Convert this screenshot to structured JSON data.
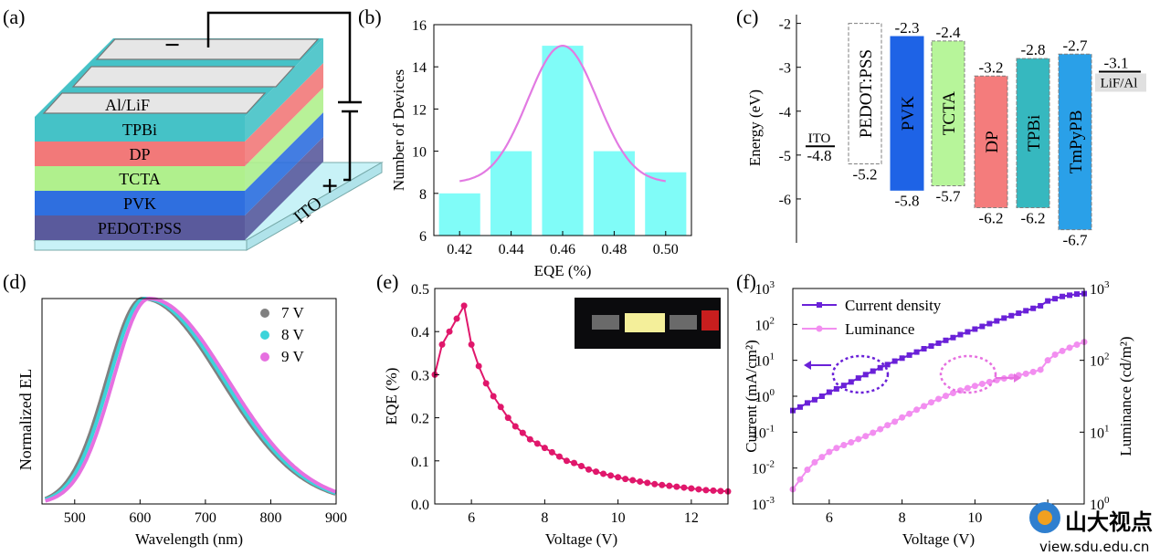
{
  "panels": {
    "a": {
      "label": "(a)",
      "layers": [
        "PEDOT:PSS",
        "PVK",
        "TCTA",
        "DP",
        "TPBi",
        "Al/LiF"
      ],
      "layer_colors": [
        "#5a5a9c",
        "#2f6fdf",
        "#b0f08d",
        "#f27979",
        "#45c2c7",
        "#dcdcdc"
      ],
      "substrate": "ITO",
      "minus": "−",
      "plus": "+"
    },
    "b": {
      "label": "(b)"
    },
    "c": {
      "label": "(c)"
    },
    "d": {
      "label": "(d)"
    },
    "e": {
      "label": "(e)"
    },
    "f": {
      "label": "(f)"
    }
  },
  "chart_data": [
    {
      "id": "b",
      "type": "bar",
      "x": [
        0.42,
        0.44,
        0.46,
        0.48,
        0.5
      ],
      "values": [
        8,
        10,
        15,
        10,
        9
      ],
      "fit_curve": "gaussian",
      "fit": {
        "amplitude": 6.5,
        "center": 0.46,
        "sigma": 0.0135,
        "baseline": 8.5
      },
      "xlabel": "EQE (%)",
      "ylabel": "Number of Devices",
      "xlim": [
        0.41,
        0.51
      ],
      "ylim": [
        6,
        16
      ],
      "xticks": [
        "0.42",
        "0.44",
        "0.46",
        "0.48",
        "0.50"
      ],
      "yticks": [
        "6",
        "8",
        "10",
        "12",
        "14",
        "16"
      ],
      "colors": {
        "bar": "#80fcf8",
        "fit": "#e27ae2"
      }
    },
    {
      "id": "c",
      "type": "bar",
      "ylabel": "Energy (eV)",
      "ylim": [
        -7,
        -1.8
      ],
      "yticks": [
        "-2",
        "-3",
        "-4",
        "-5",
        "-6"
      ],
      "materials": [
        {
          "name": "ITO",
          "level": -4.8,
          "kind": "line",
          "label": "ITO",
          "value_label": "-4.8"
        },
        {
          "name": "PEDOT:PSS",
          "lumo": -2.0,
          "homo": -5.2,
          "color": "#ffffff",
          "border": "#7f7f7f",
          "top_label": "",
          "bottom_label": "-5.2"
        },
        {
          "name": "PVK",
          "lumo": -2.3,
          "homo": -5.8,
          "color": "#1e63e6",
          "border": "#1e63e6",
          "top_label": "-2.3",
          "bottom_label": "-5.8"
        },
        {
          "name": "TCTA",
          "lumo": -2.4,
          "homo": -5.7,
          "color": "#b7f59a",
          "border": "#7f7f7f",
          "top_label": "-2.4",
          "bottom_label": "-5.7"
        },
        {
          "name": "DP",
          "lumo": -3.2,
          "homo": -6.2,
          "color": "#f47c7c",
          "border": "#7f7f7f",
          "top_label": "-3.2",
          "bottom_label": "-6.2"
        },
        {
          "name": "TPBi",
          "lumo": -2.8,
          "homo": -6.2,
          "color": "#36b8bf",
          "border": "#7f7f7f",
          "top_label": "-2.8",
          "bottom_label": "-6.2"
        },
        {
          "name": "TmPyPB",
          "lumo": -2.7,
          "homo": -6.7,
          "color": "#2aa0e8",
          "border": "#7f7f7f",
          "top_label": "-2.7",
          "bottom_label": "-6.7"
        },
        {
          "name": "LiF/Al",
          "level": -3.1,
          "kind": "line",
          "label": "LiF/Al",
          "value_label": "-3.1"
        }
      ]
    },
    {
      "id": "d",
      "type": "line",
      "xlabel": "Wavelength (nm)",
      "ylabel": "Normalized EL",
      "xlim": [
        450,
        900
      ],
      "xticks": [
        "500",
        "600",
        "700",
        "800",
        "900"
      ],
      "series": [
        {
          "name": "7 V",
          "peak": 604,
          "color": "#808080"
        },
        {
          "name": "8 V",
          "peak": 608,
          "color": "#3cd4da"
        },
        {
          "name": "9 V",
          "peak": 614,
          "color": "#e670e0"
        }
      ]
    },
    {
      "id": "e",
      "type": "line",
      "xlabel": "Voltage (V)",
      "ylabel": "EQE (%)",
      "xlim": [
        5,
        13
      ],
      "ylim": [
        0,
        0.5
      ],
      "xticks": [
        "6",
        "8",
        "10",
        "12"
      ],
      "yticks": [
        "0.0",
        "0.1",
        "0.2",
        "0.3",
        "0.4",
        "0.5"
      ],
      "x": [
        5.0,
        5.2,
        5.4,
        5.6,
        5.8,
        6.0,
        6.2,
        6.4,
        6.6,
        6.8,
        7.0,
        7.2,
        7.4,
        7.6,
        7.8,
        8.0,
        8.2,
        8.4,
        8.6,
        8.8,
        9.0,
        9.2,
        9.4,
        9.6,
        9.8,
        10.0,
        10.2,
        10.4,
        10.6,
        10.8,
        11.0,
        11.2,
        11.4,
        11.6,
        11.8,
        12.0,
        12.2,
        12.4,
        12.6,
        12.8,
        13.0
      ],
      "y": [
        0.3,
        0.37,
        0.4,
        0.43,
        0.46,
        0.37,
        0.32,
        0.28,
        0.25,
        0.225,
        0.2,
        0.18,
        0.165,
        0.15,
        0.14,
        0.13,
        0.12,
        0.11,
        0.1,
        0.095,
        0.088,
        0.08,
        0.075,
        0.07,
        0.066,
        0.062,
        0.058,
        0.055,
        0.052,
        0.049,
        0.046,
        0.044,
        0.042,
        0.04,
        0.038,
        0.036,
        0.034,
        0.032,
        0.031,
        0.03,
        0.029
      ],
      "color": "#e0176b",
      "inset": "device photo"
    },
    {
      "id": "f",
      "type": "line",
      "xlabel": "Voltage (V)",
      "ylabel": "Current (mA/cm²)",
      "ylabel_right": "Luminance (cd/m²)",
      "xlim": [
        5,
        13
      ],
      "xticks": [
        "6",
        "8",
        "10",
        "12"
      ],
      "ylim_log": [
        -3,
        3
      ],
      "ylim_right_log": [
        0,
        3
      ],
      "series": [
        {
          "name": "Current density",
          "color": "#6a21d8",
          "axis": "left",
          "x": [
            5.0,
            5.2,
            5.4,
            5.6,
            5.8,
            6.0,
            6.2,
            6.4,
            6.6,
            6.8,
            7.0,
            7.2,
            7.4,
            7.6,
            7.8,
            8.0,
            8.2,
            8.4,
            8.6,
            8.8,
            9.0,
            9.2,
            9.4,
            9.6,
            9.8,
            10.0,
            10.2,
            10.4,
            10.6,
            10.8,
            11.0,
            11.2,
            11.4,
            11.6,
            11.8,
            12.0,
            12.2,
            12.4,
            12.6,
            12.8,
            13.0
          ],
          "y": [
            0.4,
            0.5,
            0.65,
            0.8,
            1.0,
            1.3,
            1.6,
            2.0,
            2.5,
            3.2,
            4.0,
            5.0,
            6.2,
            7.6,
            9.5,
            11.5,
            14,
            17,
            21,
            25,
            30,
            36,
            43,
            52,
            62,
            74,
            88,
            105,
            125,
            150,
            175,
            205,
            240,
            280,
            330,
            450,
            520,
            600,
            650,
            700,
            720
          ]
        },
        {
          "name": "Luminance",
          "color": "#f28ef0",
          "axis": "right",
          "x": [
            5.0,
            5.2,
            5.4,
            5.6,
            5.8,
            6.0,
            6.2,
            6.4,
            6.6,
            6.8,
            7.0,
            7.2,
            7.4,
            7.6,
            7.8,
            8.0,
            8.2,
            8.4,
            8.6,
            8.8,
            9.0,
            9.2,
            9.4,
            9.6,
            9.8,
            10.0,
            10.2,
            10.4,
            10.6,
            10.8,
            11.0,
            11.2,
            11.4,
            11.6,
            11.8,
            12.0,
            12.2,
            12.4,
            12.6,
            12.8,
            13.0
          ],
          "y": [
            1.6,
            2.2,
            3.0,
            3.8,
            4.5,
            5.3,
            6.0,
            6.6,
            7.2,
            8.0,
            8.8,
            9.8,
            11,
            12.5,
            14,
            16,
            18,
            20.5,
            23,
            26,
            29,
            32,
            35,
            38,
            41,
            44,
            47,
            50,
            53,
            56,
            59,
            62,
            65,
            69,
            74,
            100,
            120,
            135,
            150,
            165,
            180
          ]
        }
      ],
      "legend": [
        "Current density",
        "Luminance"
      ]
    }
  ],
  "watermark": {
    "name": "山大视点",
    "url": "view.sdu.edu.cn"
  }
}
